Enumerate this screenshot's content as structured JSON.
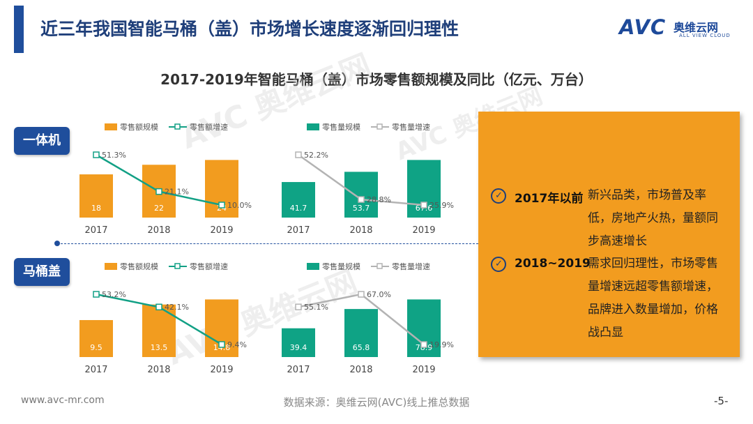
{
  "header": {
    "title": "近三年我国智能马桶（盖）市场增长速度逐渐回归理性",
    "logo_main": "AVC",
    "logo_cn": "奥维云网",
    "logo_en": "ALL VIEW CLOUD"
  },
  "subtitle": "2017-2019年智能马桶（盖）市场零售额规模及同比（亿元、万台）",
  "watermark": {
    "main": "AVC 奥维云网",
    "sub": "ALL VIEW CLOUD"
  },
  "sections": [
    {
      "label": "一体机"
    },
    {
      "label": "马桶盖"
    }
  ],
  "chart_data": [
    {
      "type": "bar",
      "group": "一体机",
      "categories": [
        "2017",
        "2018",
        "2019"
      ],
      "series": [
        {
          "name": "零售额规模",
          "kind": "bar",
          "values": [
            18,
            22,
            24
          ],
          "labels": [
            "18",
            "22",
            "24"
          ]
        },
        {
          "name": "零售额增速",
          "kind": "line",
          "values": [
            51.3,
            21.1,
            10.0
          ],
          "labels": [
            "51.3%",
            "21.1%",
            "10.0%"
          ]
        }
      ],
      "colors": {
        "bar": "#f29c1f",
        "line": "#12a085"
      }
    },
    {
      "type": "bar",
      "group": "一体机",
      "categories": [
        "2017",
        "2018",
        "2019"
      ],
      "series": [
        {
          "name": "零售量规模",
          "kind": "bar",
          "values": [
            41.7,
            53.7,
            67.6
          ],
          "labels": [
            "41.7",
            "53.7",
            "67.6"
          ]
        },
        {
          "name": "零售量增速",
          "kind": "line",
          "values": [
            52.2,
            28.8,
            25.9
          ],
          "labels": [
            "52.2%",
            "28.8%",
            "25.9%"
          ]
        }
      ],
      "colors": {
        "bar": "#0fa385",
        "line": "#b3b3b3"
      }
    },
    {
      "type": "bar",
      "group": "马桶盖",
      "categories": [
        "2017",
        "2018",
        "2019"
      ],
      "series": [
        {
          "name": "零售额规模",
          "kind": "bar",
          "values": [
            9.5,
            13.5,
            14.8
          ],
          "labels": [
            "9.5",
            "13.5",
            "14.8"
          ]
        },
        {
          "name": "零售额增速",
          "kind": "line",
          "values": [
            53.2,
            42.1,
            9.4
          ],
          "labels": [
            "53.2%",
            "42.1%",
            "9.4%"
          ]
        }
      ],
      "colors": {
        "bar": "#f29c1f",
        "line": "#12a085"
      }
    },
    {
      "type": "bar",
      "group": "马桶盖",
      "categories": [
        "2017",
        "2018",
        "2019"
      ],
      "series": [
        {
          "name": "零售量规模",
          "kind": "bar",
          "values": [
            39.4,
            65.8,
            78.9
          ],
          "labels": [
            "39.4",
            "65.8",
            "78.9"
          ]
        },
        {
          "name": "零售量增速",
          "kind": "line",
          "values": [
            55.1,
            67.0,
            19.9
          ],
          "labels": [
            "55.1%",
            "67.0%",
            "19.9%"
          ]
        }
      ],
      "colors": {
        "bar": "#0fa385",
        "line": "#b3b3b3"
      }
    }
  ],
  "panel": {
    "points": [
      {
        "head": "2017年以前",
        "lines": [
          "新兴品类，市场普及率",
          "低，房地产火热，量额同",
          "步高速增长"
        ]
      },
      {
        "head": "2018~2019",
        "lines": [
          "需求回归理性，市场零售",
          "量增速远超零售额增速，",
          "品牌进入数量增加，价格",
          "战凸显"
        ]
      }
    ],
    "icon": "check-circle-icon"
  },
  "footer": {
    "website": "www.avc-mr.com",
    "source": "数据来源：奥维云网(AVC)线上推总数据",
    "page": "-5-"
  }
}
